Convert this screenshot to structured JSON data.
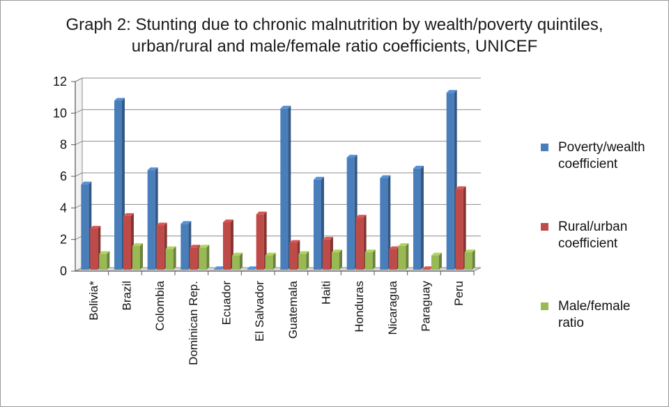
{
  "chart_data": {
    "type": "bar",
    "title_lines": [
      "Graph 2: Stunting due to chronic malnutrition by wealth/poverty quintiles,",
      "urban/rural and male/female ratio coefficients, UNICEF"
    ],
    "categories": [
      "Bolivia*",
      "Brazil",
      "Colombia",
      "Dominican Rep.",
      "Ecuador",
      "El Salvador",
      "Guatemala",
      "Haiti",
      "Honduras",
      "Nicaragua",
      "Paraguay",
      "Peru"
    ],
    "series": [
      {
        "name": "Poverty/wealth coefficient",
        "legend_lines": [
          "Poverty/wealth",
          "coefficient"
        ],
        "color": "#4a7ebb",
        "values": [
          5.4,
          10.7,
          6.3,
          2.9,
          0,
          0,
          10.2,
          5.7,
          7.1,
          5.8,
          6.4,
          11.2
        ]
      },
      {
        "name": "Rural/urban coefficient",
        "legend_lines": [
          "Rural/urban",
          "coefficient"
        ],
        "color": "#be4b48",
        "values": [
          2.6,
          3.4,
          2.8,
          1.4,
          3.0,
          3.5,
          1.7,
          1.9,
          3.3,
          1.3,
          0,
          5.1
        ]
      },
      {
        "name": "Male/female ratio",
        "legend_lines": [
          "Male/female",
          "ratio"
        ],
        "color": "#98b954",
        "values": [
          1.0,
          1.5,
          1.3,
          1.4,
          0.9,
          0.9,
          1.0,
          1.1,
          1.1,
          1.5,
          0.9,
          1.1
        ]
      }
    ],
    "xlabel": "",
    "ylabel": "",
    "ylim": [
      0,
      12
    ],
    "yticks": [
      "0",
      "2",
      "4",
      "6",
      "8",
      "10",
      "12"
    ],
    "grid": true,
    "legend_position": "right",
    "style": "3d-clustered-column"
  }
}
